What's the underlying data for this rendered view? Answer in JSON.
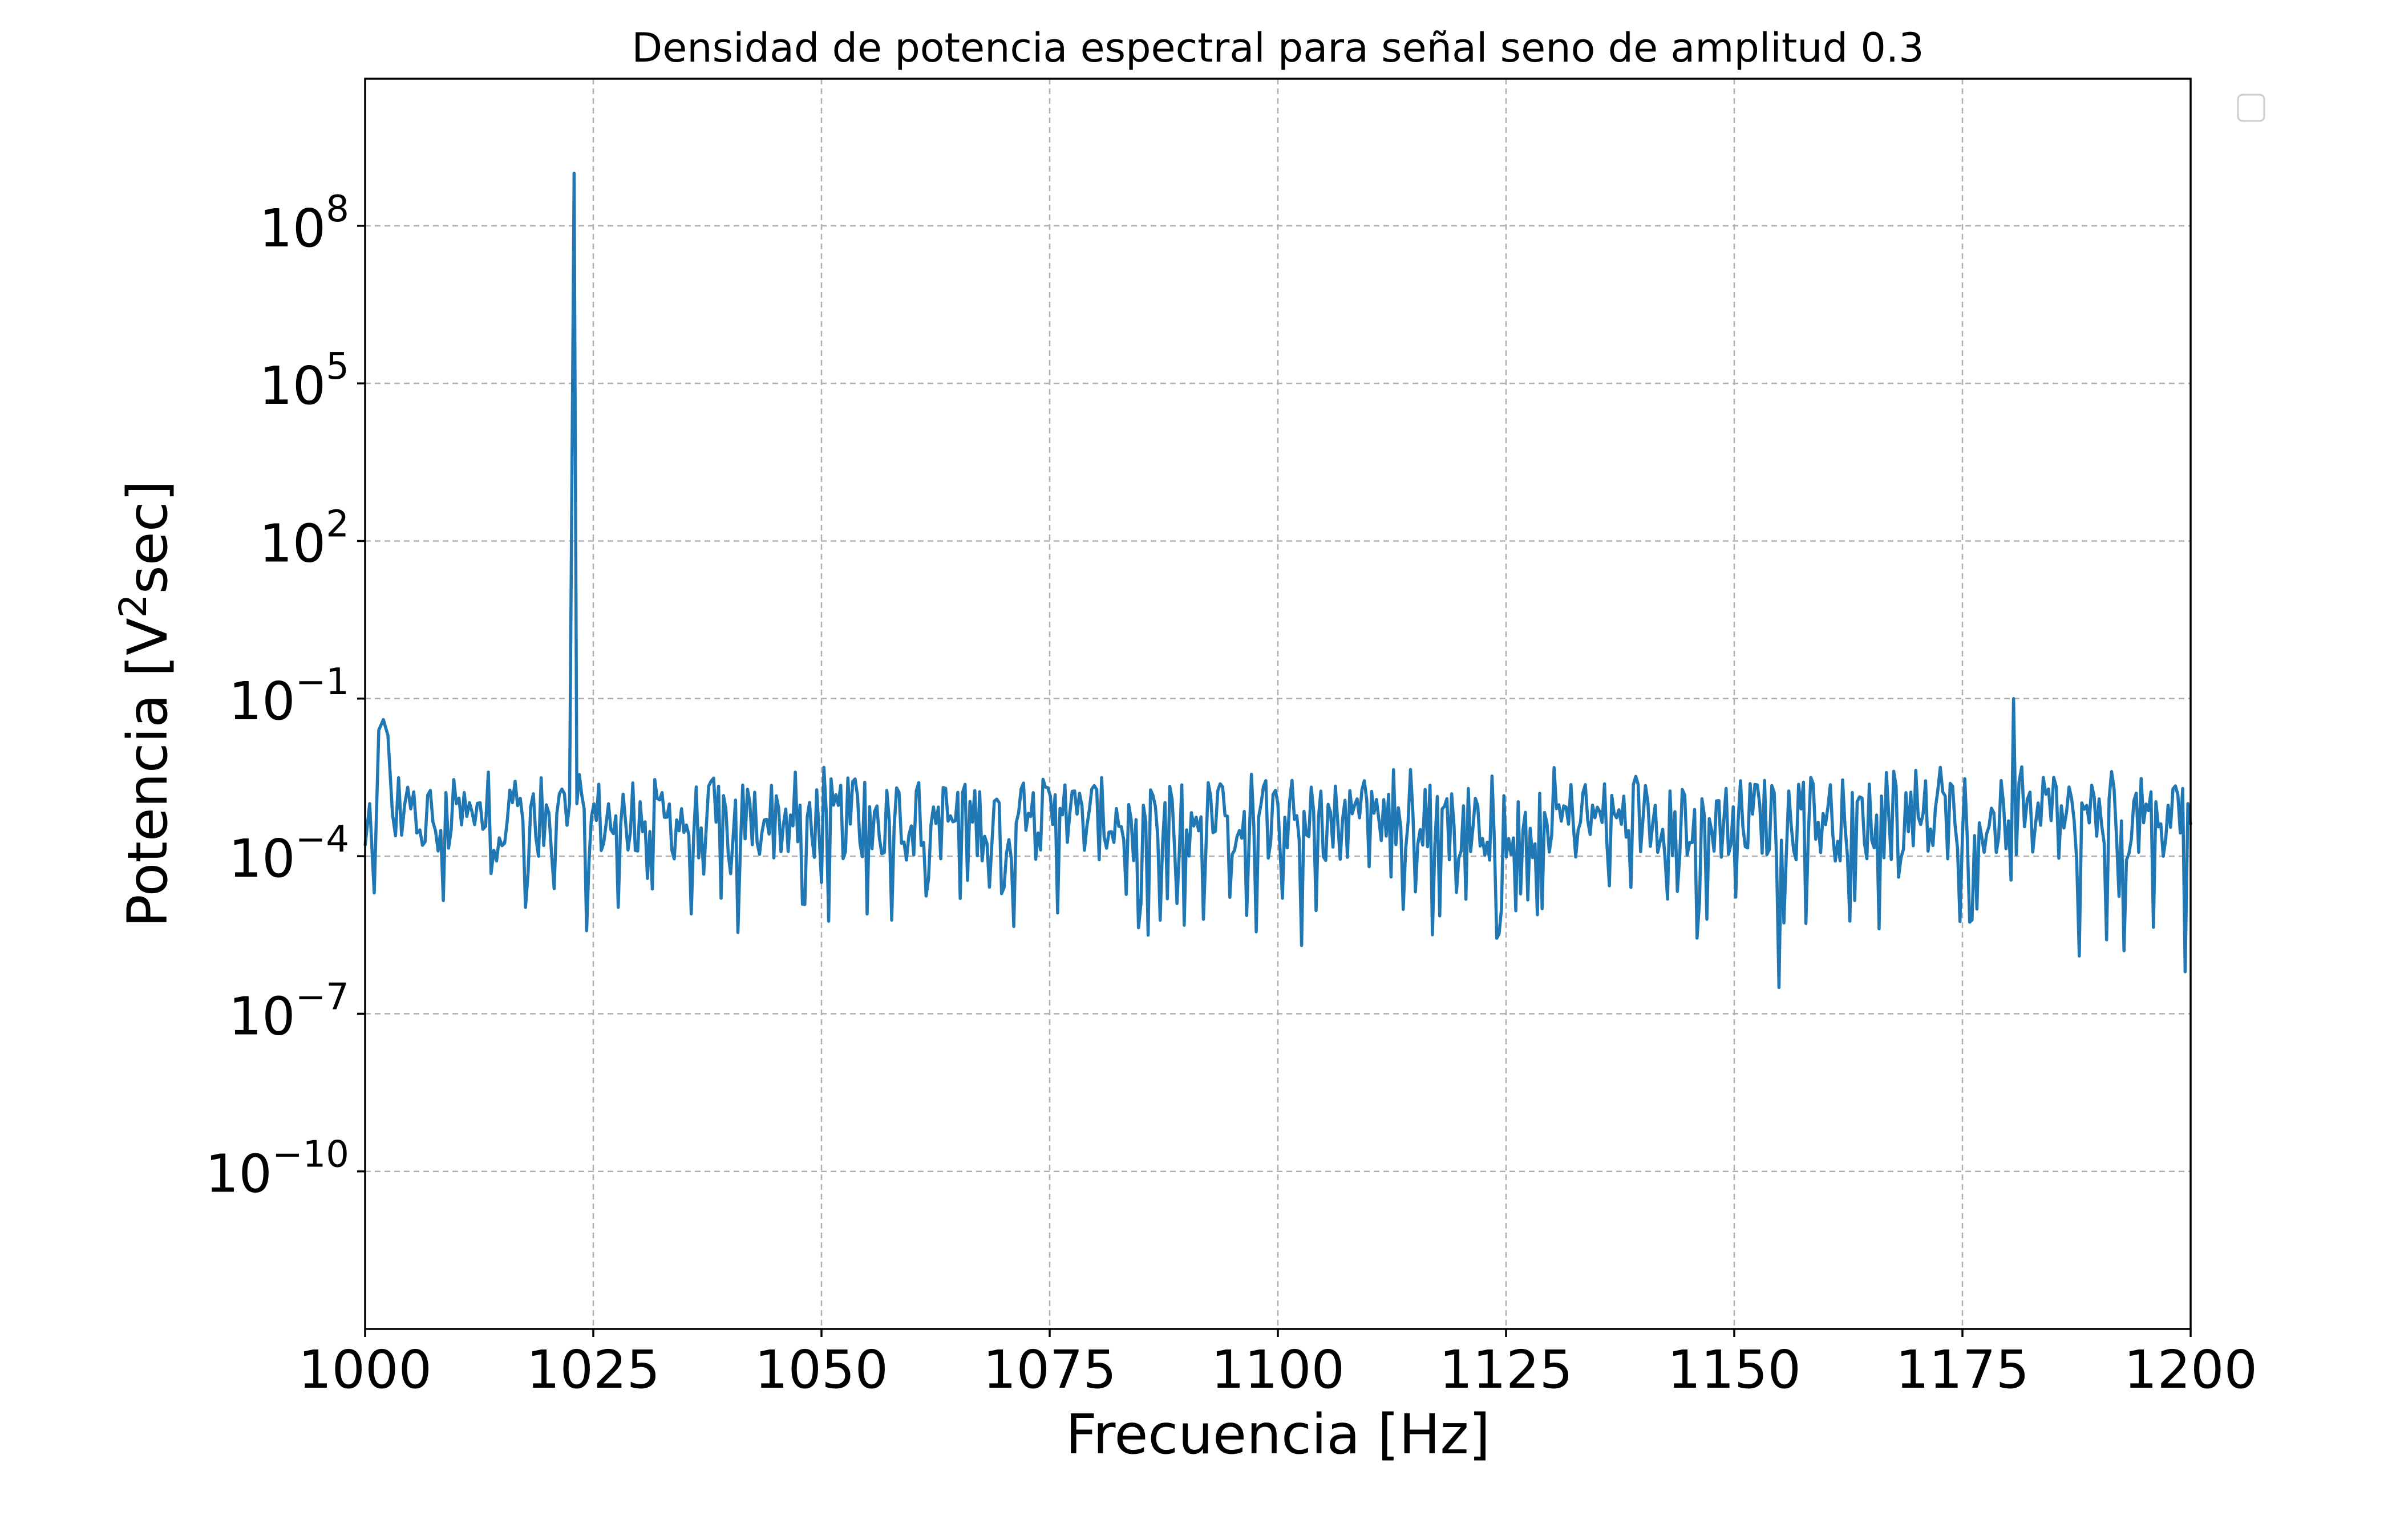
{
  "chart_data": {
    "type": "line",
    "title": "Densidad de potencia espectral para señal seno de amplitud 0.3",
    "xlabel": "Frecuencia [Hz]",
    "ylabel": "Potencia [V²sec]",
    "ylabel_parts": {
      "before": "Potencia [V",
      "sup": "2",
      "after": "sec]"
    },
    "x_scale": "linear",
    "y_scale": "log",
    "xlim": [
      1000,
      1200
    ],
    "ylim_exponent": [
      -13,
      10.8
    ],
    "x_ticks": [
      {
        "value": 1000,
        "label": "1000"
      },
      {
        "value": 1025,
        "label": "1025"
      },
      {
        "value": 1050,
        "label": "1050"
      },
      {
        "value": 1075,
        "label": "1075"
      },
      {
        "value": 1100,
        "label": "1100"
      },
      {
        "value": 1125,
        "label": "1125"
      },
      {
        "value": 1150,
        "label": "1150"
      },
      {
        "value": 1175,
        "label": "1175"
      },
      {
        "value": 1200,
        "label": "1200"
      }
    ],
    "y_ticks": [
      {
        "exponent": 8,
        "base": "10",
        "sup": "8"
      },
      {
        "exponent": 5,
        "base": "10",
        "sup": "5"
      },
      {
        "exponent": 2,
        "base": "10",
        "sup": "2"
      },
      {
        "exponent": -1,
        "base": "10",
        "sup": "−1"
      },
      {
        "exponent": -4,
        "base": "10",
        "sup": "−4"
      },
      {
        "exponent": -7,
        "base": "10",
        "sup": "−7"
      },
      {
        "exponent": -10,
        "base": "10",
        "sup": "−10"
      }
    ],
    "grid": true,
    "legend": {
      "placement": "top-right-outside",
      "entries": []
    },
    "series": [
      {
        "color": "#1f77b4",
        "noise_floor_log10": -3.3,
        "points": [
          {
            "x": 1000,
            "log10_y": -3.8
          },
          {
            "x": 1000.5,
            "log10_y": -3.0
          },
          {
            "x": 1001,
            "log10_y": -4.7
          },
          {
            "x": 1001.5,
            "log10_y": -1.6
          },
          {
            "x": 1002,
            "log10_y": -1.4
          },
          {
            "x": 1002.5,
            "log10_y": -1.7
          },
          {
            "x": 1003,
            "log10_y": -3.2
          },
          {
            "x": 1004,
            "log10_y": -3.6
          },
          {
            "x": 1005,
            "log10_y": -3.1
          },
          {
            "x": 1006,
            "log10_y": -3.5
          },
          {
            "x": 1008,
            "log10_y": -3.9
          },
          {
            "x": 1010,
            "log10_y": -3.0
          },
          {
            "x": 1012,
            "log10_y": -3.4
          },
          {
            "x": 1013.5,
            "log10_y": -2.4
          },
          {
            "x": 1015,
            "log10_y": -3.8
          },
          {
            "x": 1017,
            "log10_y": -2.9
          },
          {
            "x": 1019,
            "log10_y": -4.0
          },
          {
            "x": 1021,
            "log10_y": -3.2
          },
          {
            "x": 1022.4,
            "log10_y": -3.0
          },
          {
            "x": 1022.9,
            "log10_y": 9.0
          },
          {
            "x": 1023.2,
            "log10_y": -3.0
          },
          {
            "x": 1024,
            "log10_y": -3.1
          },
          {
            "x": 1028,
            "log10_y": -3.4
          },
          {
            "x": 1032,
            "log10_y": -2.9
          },
          {
            "x": 1036,
            "log10_y": -3.6
          },
          {
            "x": 1039,
            "log10_y": -4.8
          },
          {
            "x": 1044,
            "log10_y": -3.3
          },
          {
            "x": 1050,
            "log10_y": -4.5
          },
          {
            "x": 1055,
            "log10_y": -5.1
          },
          {
            "x": 1062,
            "log10_y": -3.4
          },
          {
            "x": 1070,
            "log10_y": -4.6
          },
          {
            "x": 1078,
            "log10_y": -3.2
          },
          {
            "x": 1085,
            "log10_y": -4.9
          },
          {
            "x": 1090,
            "log10_y": -3.5
          },
          {
            "x": 1100,
            "log10_y": -3.0
          },
          {
            "x": 1100.5,
            "log10_y": -4.8
          },
          {
            "x": 1102.6,
            "log10_y": -5.7
          },
          {
            "x": 1110,
            "log10_y": -4.2
          },
          {
            "x": 1118,
            "log10_y": -3.1
          },
          {
            "x": 1124.5,
            "log10_y": -5.0
          },
          {
            "x": 1130,
            "log10_y": -3.6
          },
          {
            "x": 1140,
            "log10_y": -3.3
          },
          {
            "x": 1147,
            "log10_y": -5.2
          },
          {
            "x": 1154.9,
            "log10_y": -6.5
          },
          {
            "x": 1160,
            "log10_y": -3.4
          },
          {
            "x": 1168,
            "log10_y": -4.4
          },
          {
            "x": 1175,
            "log10_y": -3.6
          },
          {
            "x": 1179.5,
            "log10_y": -3.0
          },
          {
            "x": 1180.6,
            "log10_y": -1.0
          },
          {
            "x": 1181.5,
            "log10_y": -2.3
          },
          {
            "x": 1183,
            "log10_y": -3.4
          },
          {
            "x": 1185,
            "log10_y": -2.5
          },
          {
            "x": 1187.8,
            "log10_y": -5.9
          },
          {
            "x": 1192.7,
            "log10_y": -5.8
          },
          {
            "x": 1197,
            "log10_y": -4.0
          },
          {
            "x": 1199.4,
            "log10_y": -6.2
          },
          {
            "x": 1199.7,
            "log10_y": -3.0
          },
          {
            "x": 1200,
            "log10_y": -3.4
          }
        ]
      }
    ]
  }
}
